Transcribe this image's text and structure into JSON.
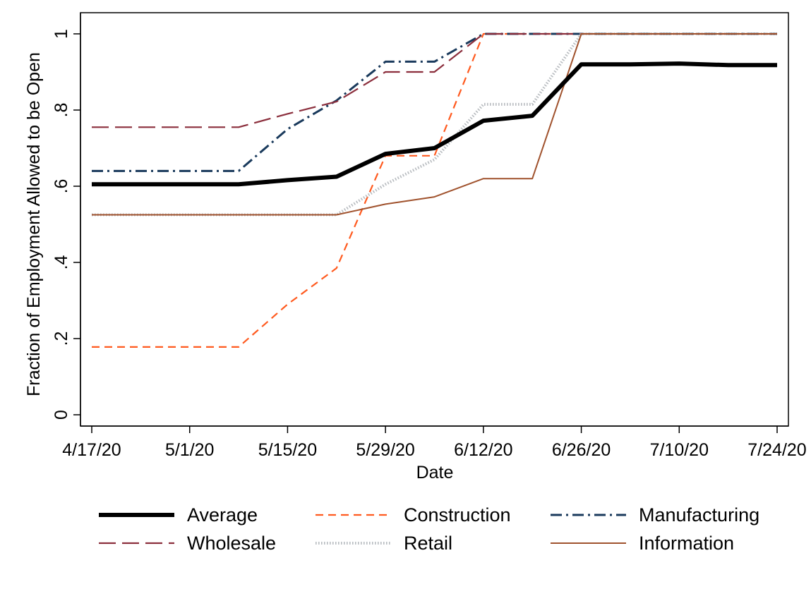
{
  "chart_data": {
    "type": "line",
    "title": "",
    "xlabel": "Date",
    "ylabel": "Fraction of Employment Allowed to be Open",
    "xlim": [
      "4/17/20",
      "7/24/20"
    ],
    "ylim": [
      0,
      1
    ],
    "x_ticks": [
      "4/17/20",
      "5/1/20",
      "5/15/20",
      "5/29/20",
      "6/12/20",
      "6/26/20",
      "7/10/20",
      "7/24/20"
    ],
    "y_ticks": [
      {
        "value": 0,
        "label": "0"
      },
      {
        "value": 0.2,
        "label": ".2"
      },
      {
        "value": 0.4,
        "label": ".4"
      },
      {
        "value": 0.6,
        "label": ".6"
      },
      {
        "value": 0.8,
        "label": ".8"
      },
      {
        "value": 1,
        "label": "1"
      }
    ],
    "grid": false,
    "legend_position": "bottom",
    "x": [
      "4/17/20",
      "4/24/20",
      "5/1/20",
      "5/8/20",
      "5/15/20",
      "5/22/20",
      "5/29/20",
      "6/5/20",
      "6/12/20",
      "6/19/20",
      "6/26/20",
      "7/3/20",
      "7/10/20",
      "7/17/20",
      "7/24/20"
    ],
    "series": [
      {
        "name": "Average",
        "color": "#000000",
        "style": "solid-thick",
        "values": [
          0.605,
          0.605,
          0.605,
          0.605,
          0.616,
          0.625,
          0.685,
          0.7,
          0.772,
          0.785,
          0.92,
          0.92,
          0.922,
          0.918,
          0.918
        ]
      },
      {
        "name": "Construction",
        "color": "#ff5a1f",
        "style": "dashed",
        "values": [
          0.178,
          0.178,
          0.178,
          0.178,
          0.29,
          0.385,
          0.68,
          0.68,
          1.0,
          1.0,
          1.0,
          1.0,
          1.0,
          1.0,
          1.0
        ]
      },
      {
        "name": "Manufacturing",
        "color": "#1a3a5c",
        "style": "dash-dot",
        "values": [
          0.64,
          0.64,
          0.64,
          0.64,
          0.75,
          0.825,
          0.927,
          0.927,
          1.0,
          1.0,
          1.0,
          1.0,
          1.0,
          1.0,
          1.0
        ]
      },
      {
        "name": "Wholesale",
        "color": "#8b2e3c",
        "style": "long-dash",
        "values": [
          0.755,
          0.755,
          0.755,
          0.755,
          0.79,
          0.822,
          0.9,
          0.9,
          1.0,
          1.0,
          1.0,
          1.0,
          1.0,
          1.0,
          1.0
        ]
      },
      {
        "name": "Retail",
        "color": "#b8bcc0",
        "style": "dotted",
        "values": [
          0.525,
          0.525,
          0.525,
          0.525,
          0.525,
          0.525,
          0.605,
          0.67,
          0.815,
          0.815,
          1.0,
          1.0,
          1.0,
          1.0,
          1.0
        ]
      },
      {
        "name": "Information",
        "color": "#a0522d",
        "style": "solid-thin",
        "values": [
          0.525,
          0.525,
          0.525,
          0.525,
          0.525,
          0.525,
          0.553,
          0.572,
          0.62,
          0.62,
          1.0,
          1.0,
          1.0,
          1.0,
          1.0
        ]
      }
    ]
  }
}
